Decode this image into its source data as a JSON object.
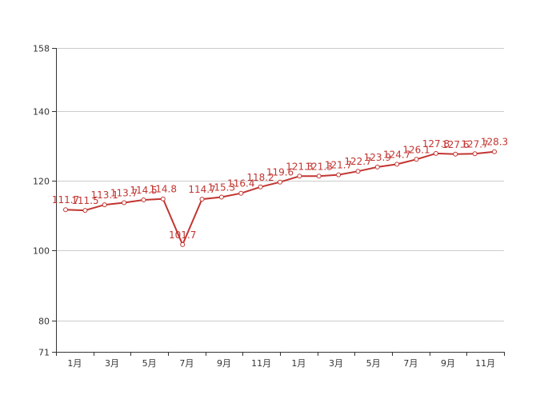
{
  "chart_data": {
    "type": "line",
    "title": "",
    "xlabel": "",
    "ylabel": "",
    "ylim": [
      71,
      158
    ],
    "y_ticks": [
      71,
      80,
      100,
      120,
      140,
      158
    ],
    "x_tick_labels": [
      "1月",
      "3月",
      "5月",
      "7月",
      "9月",
      "11月",
      "1月",
      "3月",
      "5月",
      "7月",
      "9月",
      "11月"
    ],
    "series": [
      {
        "color": "#c23531",
        "values": [
          111.7,
          111.5,
          113.1,
          113.7,
          114.5,
          114.8,
          101.7,
          114.7,
          115.3,
          116.4,
          118.2,
          119.6,
          121.3,
          121.3,
          121.7,
          122.7,
          123.9,
          124.7,
          126.1,
          127.8,
          127.6,
          127.7,
          128.3
        ],
        "labels": [
          "111.7",
          "111.5",
          "113.1",
          "113.7",
          "114.5",
          "114.8",
          "101.7",
          "114.7",
          "115.3",
          "116.4",
          "118.2",
          "119.6",
          "121.3",
          "121.3",
          "121.7",
          "122.7",
          "123.9",
          "124.7",
          "126.1",
          "127.8",
          "127.6",
          "127.7",
          "128.3"
        ]
      }
    ],
    "grid": true,
    "legend": "none"
  }
}
